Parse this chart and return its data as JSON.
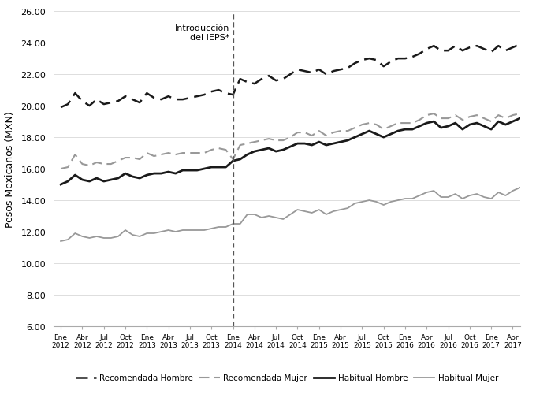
{
  "ylabel": "Pesos Mexicanos (MXN)",
  "ylim": [
    6.0,
    26.0
  ],
  "yticks": [
    6.0,
    8.0,
    10.0,
    12.0,
    14.0,
    16.0,
    18.0,
    20.0,
    22.0,
    24.0,
    26.0
  ],
  "vline_label": "Introducción\ndel IEPS*",
  "vline_index": 24,
  "xtick_labels": [
    "Ene\n2012",
    "Abr\n2012",
    "Jul\n2012",
    "Oct\n2012",
    "Ene\n2013",
    "Abr\n2013",
    "Jul\n2013",
    "Oct\n2013",
    "Ene\n2014",
    "Abr\n2014",
    "Jul\n2014",
    "Oct\n2014",
    "Ene\n2015",
    "Abr\n2015",
    "Jul\n2015",
    "Oct\n2015",
    "Ene\n2016",
    "Abr\n2016",
    "Jul\n2016",
    "Oct\n2016",
    "Ene\n2017",
    "Abr\n2017"
  ],
  "rec_hombre": [
    19.9,
    20.1,
    20.8,
    20.3,
    20.0,
    20.4,
    20.1,
    20.2,
    20.3,
    20.6,
    20.4,
    20.2,
    20.8,
    20.5,
    20.4,
    20.6,
    20.4,
    20.4,
    20.5,
    20.6,
    20.7,
    20.9,
    21.0,
    20.8,
    20.7,
    21.7,
    21.5,
    21.4,
    21.7,
    21.9,
    21.6,
    21.7,
    22.0,
    22.3,
    22.2,
    22.1,
    22.3,
    22.0,
    22.2,
    22.3,
    22.4,
    22.7,
    22.9,
    23.0,
    22.9,
    22.5,
    22.8,
    23.0,
    23.0,
    23.1,
    23.3,
    23.6,
    23.8,
    23.5,
    23.5,
    23.8,
    23.5,
    23.7,
    23.8,
    23.6,
    23.4,
    23.8,
    23.5,
    23.7,
    23.9
  ],
  "rec_mujer": [
    16.0,
    16.1,
    16.9,
    16.3,
    16.2,
    16.4,
    16.3,
    16.3,
    16.5,
    16.7,
    16.7,
    16.6,
    17.0,
    16.8,
    16.9,
    17.0,
    16.9,
    17.0,
    17.0,
    17.0,
    17.0,
    17.2,
    17.3,
    17.2,
    16.6,
    17.5,
    17.6,
    17.7,
    17.8,
    17.9,
    17.8,
    17.8,
    18.0,
    18.3,
    18.3,
    18.1,
    18.4,
    18.1,
    18.3,
    18.4,
    18.4,
    18.6,
    18.8,
    18.9,
    18.8,
    18.5,
    18.7,
    18.9,
    18.9,
    18.9,
    19.1,
    19.4,
    19.5,
    19.2,
    19.2,
    19.4,
    19.1,
    19.3,
    19.4,
    19.2,
    19.0,
    19.4,
    19.2,
    19.4,
    19.5
  ],
  "hab_hombre": [
    15.0,
    15.2,
    15.6,
    15.3,
    15.2,
    15.4,
    15.2,
    15.3,
    15.4,
    15.7,
    15.5,
    15.4,
    15.6,
    15.7,
    15.7,
    15.8,
    15.7,
    15.9,
    15.9,
    15.9,
    16.0,
    16.1,
    16.1,
    16.1,
    16.5,
    16.6,
    16.9,
    17.1,
    17.2,
    17.3,
    17.1,
    17.2,
    17.4,
    17.6,
    17.6,
    17.5,
    17.7,
    17.5,
    17.6,
    17.7,
    17.8,
    18.0,
    18.2,
    18.4,
    18.2,
    18.0,
    18.2,
    18.4,
    18.5,
    18.5,
    18.7,
    18.9,
    19.0,
    18.6,
    18.7,
    18.9,
    18.5,
    18.8,
    18.9,
    18.7,
    18.5,
    19.0,
    18.8,
    19.0,
    19.2
  ],
  "hab_mujer": [
    11.4,
    11.5,
    11.9,
    11.7,
    11.6,
    11.7,
    11.6,
    11.6,
    11.7,
    12.1,
    11.8,
    11.7,
    11.9,
    11.9,
    12.0,
    12.1,
    12.0,
    12.1,
    12.1,
    12.1,
    12.1,
    12.2,
    12.3,
    12.3,
    12.5,
    12.5,
    13.1,
    13.1,
    12.9,
    13.0,
    12.9,
    12.8,
    13.1,
    13.4,
    13.3,
    13.2,
    13.4,
    13.1,
    13.3,
    13.4,
    13.5,
    13.8,
    13.9,
    14.0,
    13.9,
    13.7,
    13.9,
    14.0,
    14.1,
    14.1,
    14.3,
    14.5,
    14.6,
    14.2,
    14.2,
    14.4,
    14.1,
    14.3,
    14.4,
    14.2,
    14.1,
    14.5,
    14.3,
    14.6,
    14.8
  ],
  "color_dark": "#1a1a1a",
  "color_light": "#999999"
}
